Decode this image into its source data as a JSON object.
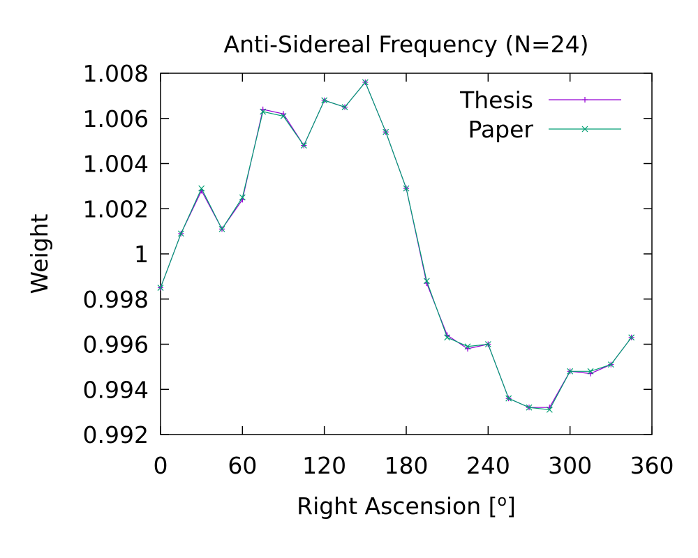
{
  "chart_data": {
    "type": "line",
    "title": "Anti-Sidereal Frequency (N=24)",
    "xlabel": "Right Ascension [",
    "xlabel_unit": "o",
    "xlabel_close": "]",
    "ylabel": "Weight",
    "xlim": [
      0,
      360
    ],
    "ylim": [
      0.992,
      1.008
    ],
    "xticks": [
      0,
      60,
      120,
      180,
      240,
      300,
      360
    ],
    "xtick_labels": [
      "0",
      "60",
      "120",
      "180",
      "240",
      "300",
      "360"
    ],
    "yticks": [
      0.992,
      0.994,
      0.996,
      0.998,
      1.0,
      1.002,
      1.004,
      1.006,
      1.008
    ],
    "ytick_labels": [
      "0.992",
      "0.994",
      "0.996",
      "0.998",
      "1",
      "1.002",
      "1.004",
      "1.006",
      "1.008"
    ],
    "grid": false,
    "legend_position": "top-right",
    "x": [
      0,
      15,
      30,
      45,
      60,
      75,
      90,
      105,
      120,
      135,
      150,
      165,
      180,
      195,
      210,
      225,
      240,
      255,
      270,
      285,
      300,
      315,
      330,
      345
    ],
    "series": [
      {
        "name": "Thesis",
        "color": "#9400d3",
        "marker": "+",
        "values": [
          0.9985,
          1.0009,
          1.0028,
          1.0011,
          1.0024,
          1.0064,
          1.0062,
          1.0048,
          1.0068,
          1.0065,
          1.0076,
          1.0054,
          1.0029,
          0.9987,
          0.9964,
          0.9958,
          0.996,
          0.9936,
          0.9932,
          0.9932,
          0.9948,
          0.9947,
          0.9951,
          0.9963
        ]
      },
      {
        "name": "Paper",
        "color": "#009e73",
        "marker": "x",
        "values": [
          0.9985,
          1.0009,
          1.0029,
          1.0011,
          1.0025,
          1.0063,
          1.0061,
          1.0048,
          1.0068,
          1.0065,
          1.0076,
          1.0054,
          1.0029,
          0.9988,
          0.9963,
          0.9959,
          0.996,
          0.9936,
          0.9932,
          0.9931,
          0.9948,
          0.9948,
          0.9951,
          0.9963
        ]
      }
    ]
  }
}
